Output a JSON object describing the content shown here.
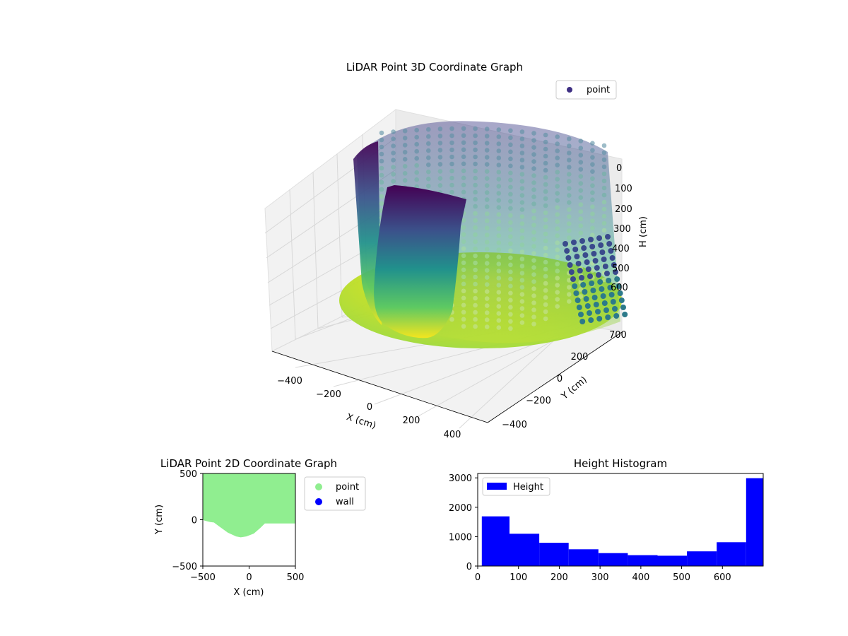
{
  "chart_data": [
    {
      "type": "scatter",
      "title": "LiDAR Point 3D Coordinate Graph",
      "xlabel": "X (cm)",
      "ylabel": "Y (cm)",
      "zlabel": "H (cm)",
      "x_ticks": [
        "−400",
        "−200",
        "0",
        "200",
        "400"
      ],
      "y_ticks": [
        "200",
        "0",
        "−200",
        "−400"
      ],
      "z_ticks": [
        "0",
        "100",
        "200",
        "300",
        "400",
        "500",
        "600",
        "700"
      ],
      "z_axis": "inverted",
      "legend": {
        "entries": [
          {
            "label": "point",
            "color": "#3e2f83"
          }
        ],
        "placement": "top-right"
      },
      "colormap": "viridis",
      "series": [
        {
          "name": "point",
          "description_in_units": "cylindrical room scan, radius ~500 cm, heights 0–700 cm"
        }
      ]
    },
    {
      "type": "scatter",
      "title": "LiDAR Point 2D Coordinate Graph",
      "xlabel": "X (cm)",
      "ylabel": "Y (cm)",
      "xlim": [
        -500,
        500
      ],
      "ylim": [
        -500,
        500
      ],
      "x_ticks": [
        "−500",
        "0",
        "500"
      ],
      "y_ticks": [
        "500",
        "0",
        "−500"
      ],
      "legend": {
        "entries": [
          {
            "label": "point",
            "color": "#90ee90"
          },
          {
            "label": "wall",
            "color": "#0000ff"
          }
        ],
        "placement": "outside right"
      },
      "series": [
        {
          "name": "point",
          "color": "#90ee90",
          "boundary": [
            [
              -500,
              500
            ],
            [
              500,
              500
            ],
            [
              500,
              -40
            ],
            [
              170,
              -40
            ],
            [
              120,
              -90
            ],
            [
              50,
              -150
            ],
            [
              -30,
              -180
            ],
            [
              -90,
              -190
            ],
            [
              -140,
              -180
            ],
            [
              -230,
              -140
            ],
            [
              -320,
              -75
            ],
            [
              -380,
              -30
            ],
            [
              -420,
              -25
            ],
            [
              -480,
              -10
            ],
            [
              -500,
              0
            ]
          ]
        }
      ]
    },
    {
      "type": "bar",
      "title": "Height Histogram",
      "xlim": [
        0,
        700
      ],
      "ylim": [
        0,
        3150
      ],
      "x_ticks": [
        "0",
        "100",
        "200",
        "300",
        "400",
        "500",
        "600"
      ],
      "y_ticks": [
        "0",
        "1000",
        "2000",
        "3000"
      ],
      "legend": {
        "entries": [
          {
            "label": "Height",
            "color": "#0000ff"
          }
        ],
        "placement": "top-left"
      },
      "series": [
        {
          "name": "Height",
          "color": "#0000ff",
          "bin_edges": [
            10,
            78,
            151,
            223,
            296,
            368,
            441,
            513,
            586,
            658,
            700
          ],
          "values": [
            1690,
            1100,
            790,
            570,
            440,
            370,
            350,
            500,
            810,
            2990
          ]
        }
      ]
    }
  ]
}
